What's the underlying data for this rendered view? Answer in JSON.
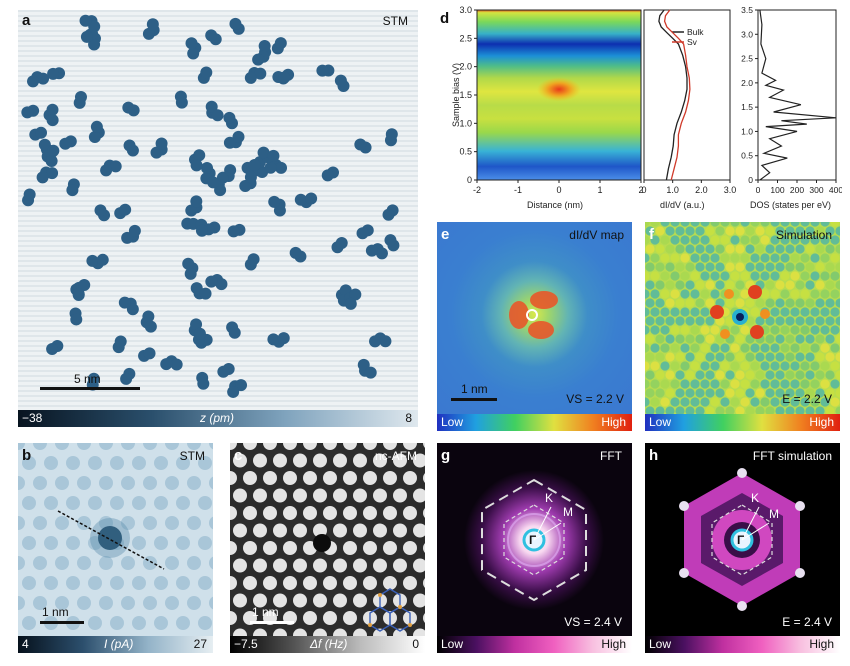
{
  "panels": {
    "a": {
      "label": "a",
      "tag": "STM",
      "scalebar": "5 nm",
      "cbar_min": "−38",
      "cbar_mid": "z (pm)",
      "cbar_max": "8"
    },
    "b": {
      "label": "b",
      "tag": "STM",
      "scalebar": "1 nm",
      "cbar_min": "4",
      "cbar_mid": "I (pA)",
      "cbar_max": "27"
    },
    "c": {
      "label": "c",
      "tag": "nc-AFM",
      "scalebar": "1 nm",
      "cbar_min": "−7.5",
      "cbar_mid": "Δf (Hz)",
      "cbar_max": "0"
    },
    "d": {
      "label": "d"
    },
    "e": {
      "label": "e",
      "tag": "dI/dV map",
      "scalebar": "1 nm",
      "annotation": "VS = 2.2 V",
      "cbar_low": "Low",
      "cbar_high": "High"
    },
    "f": {
      "label": "f",
      "tag": "Simulation",
      "annotation": "E = 2.2 V",
      "cbar_low": "Low",
      "cbar_high": "High"
    },
    "g": {
      "label": "g",
      "tag": "FFT",
      "annotation": "VS = 2.4 V",
      "cbar_low": "Low",
      "cbar_high": "High",
      "k": "K",
      "m": "M",
      "gamma": "Γ"
    },
    "h": {
      "label": "h",
      "tag": "FFT simulation",
      "annotation": "E = 2.4 V",
      "cbar_low": "Low",
      "cbar_high": "High",
      "k": "K",
      "m": "M",
      "gamma": "Γ"
    }
  },
  "chart_data": [
    {
      "type": "heatmap",
      "xlabel": "Distance (nm)",
      "ylabel": "Sample bias (V)",
      "xlim": [
        -2,
        2
      ],
      "ylim": [
        0,
        3.0
      ],
      "xticks": [
        "-2",
        "-1",
        "0",
        "1",
        "2"
      ],
      "yticks": [
        "0",
        "0.5",
        "1.0",
        "1.5",
        "2.0",
        "2.5",
        "3.0"
      ]
    },
    {
      "type": "line",
      "xlabel": "dI/dV (a.u.)",
      "xlim": [
        0,
        3.0
      ],
      "ylim": [
        0,
        3.0
      ],
      "xticks": [
        "0",
        "0.5",
        "1.0",
        "1.5",
        "2.0",
        "2.5",
        "3.0"
      ],
      "series": [
        {
          "name": "Bulk",
          "color": "#222222",
          "x": [
            0.78,
            0.85,
            0.95,
            1.02,
            1.05,
            1.15,
            1.3,
            1.42,
            1.5,
            1.5,
            1.45,
            1.35,
            1.2,
            1.0,
            0.8,
            0.6,
            0.52,
            0.55,
            0.7
          ],
          "y": [
            0,
            0.2,
            0.4,
            0.6,
            0.8,
            1.0,
            1.2,
            1.4,
            1.6,
            1.8,
            2.0,
            2.2,
            2.4,
            2.5,
            2.6,
            2.7,
            2.8,
            2.9,
            3.0
          ]
        },
        {
          "name": "Sv",
          "color": "#d03a2a",
          "x": [
            0.95,
            1.05,
            1.15,
            1.2,
            1.2,
            1.3,
            1.45,
            1.55,
            1.6,
            1.58,
            1.5,
            1.45,
            1.38,
            1.2,
            1.0,
            0.8,
            0.72,
            0.75,
            0.9
          ],
          "y": [
            0,
            0.2,
            0.4,
            0.6,
            0.8,
            1.0,
            1.2,
            1.4,
            1.6,
            1.8,
            2.0,
            2.2,
            2.4,
            2.5,
            2.6,
            2.7,
            2.8,
            2.9,
            3.0
          ]
        }
      ]
    },
    {
      "type": "line",
      "xlabel": "DOS (states per eV)",
      "xlim": [
        0,
        400
      ],
      "ylim": [
        0,
        3.5
      ],
      "xticks": [
        "0",
        "100",
        "200",
        "300",
        "400"
      ],
      "yticks": [
        "0",
        "0.5",
        "1.0",
        "1.5",
        "2.0",
        "2.5",
        "3.0",
        "3.5"
      ],
      "series": [
        {
          "name": "",
          "color": "#222222",
          "x": [
            10,
            60,
            20,
            150,
            30,
            120,
            60,
            200,
            40,
            250,
            120,
            400,
            80,
            220,
            60,
            130,
            40,
            90,
            20,
            40,
            15,
            20,
            10
          ],
          "y": [
            0,
            0.15,
            0.3,
            0.45,
            0.55,
            0.7,
            0.85,
            1.0,
            1.1,
            1.15,
            1.22,
            1.28,
            1.4,
            1.55,
            1.7,
            1.85,
            1.95,
            2.05,
            2.2,
            2.5,
            2.8,
            3.2,
            3.5
          ]
        }
      ]
    }
  ]
}
